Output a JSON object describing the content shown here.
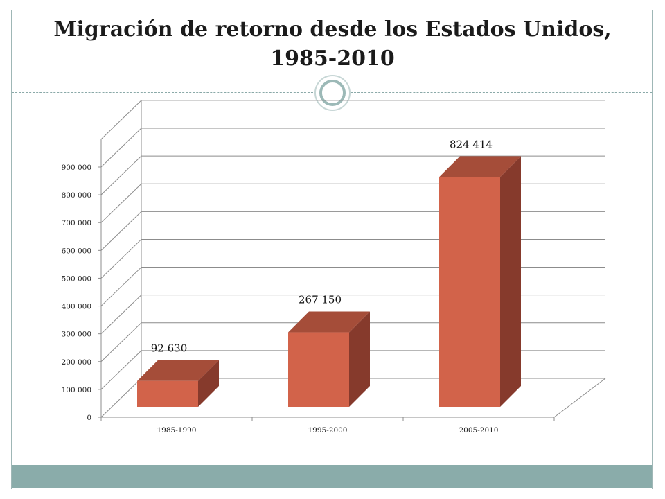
{
  "slide": {
    "title_line1": "Migración de retorno desde los Estados Unidos,",
    "title_line2": "1985-2010"
  },
  "colors": {
    "bar_front": "#d2634a",
    "bar_top": "#a54d39",
    "bar_side": "#863a2c",
    "grid": "#8c8c8c",
    "accent": "#8aacaa"
  },
  "chart_data": {
    "type": "bar",
    "style": "3d-column",
    "categories": [
      "1985-1990",
      "1995-2000",
      "2005-2010"
    ],
    "values": [
      92630,
      267150,
      824414
    ],
    "data_labels": [
      "92 630",
      "267 150",
      "824 414"
    ],
    "y_ticks": [
      "0",
      "100 000",
      "200 000",
      "300 000",
      "400 000",
      "500 000",
      "600 000",
      "700 000",
      "800 000",
      "900 000"
    ],
    "ylim": [
      0,
      900000
    ],
    "grid": true,
    "legend": "none"
  }
}
